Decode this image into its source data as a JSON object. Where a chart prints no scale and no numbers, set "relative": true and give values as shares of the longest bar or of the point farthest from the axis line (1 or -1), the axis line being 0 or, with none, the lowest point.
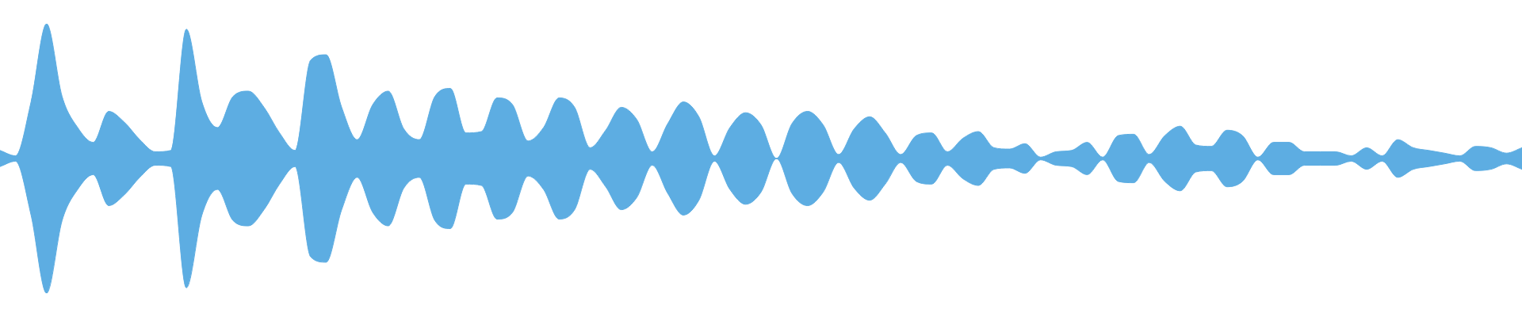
{
  "chart_data": {
    "type": "area",
    "relative": true,
    "ref_lines": [
      {
        "axis": "y",
        "value": 0,
        "color": "#5dade2"
      }
    ],
    "categories": [
      null,
      null,
      null,
      null,
      null,
      null,
      null,
      null,
      null,
      null,
      null,
      null,
      null,
      null,
      null,
      null,
      null,
      null,
      null,
      null,
      null,
      null,
      null,
      null,
      null,
      null,
      null,
      null,
      null,
      null,
      null,
      null,
      null,
      null,
      null,
      null,
      null,
      null,
      null,
      null,
      null,
      null,
      null,
      null,
      null,
      null,
      null,
      null,
      null,
      null,
      null,
      null,
      null,
      null,
      null,
      null,
      null,
      null,
      null,
      null,
      null,
      null,
      null,
      null,
      null,
      null,
      null,
      null,
      null,
      null,
      null,
      null,
      null,
      null,
      null,
      null,
      null,
      null,
      null,
      null,
      null,
      null,
      null,
      null,
      null,
      null,
      null,
      null,
      null,
      null,
      null,
      null,
      null,
      null,
      null,
      null,
      null,
      null,
      null
    ],
    "series": [
      {
        "color": "#5dade2",
        "values": [
          0.06,
          0.02,
          0.42,
          1,
          0.46,
          0.23,
          0.12,
          0.35,
          0.27,
          0.14,
          0.05,
          0.06,
          0.96,
          0.42,
          0.23,
          0.46,
          0.5,
          0.38,
          0.19,
          0.06,
          0.73,
          0.77,
          0.38,
          0.14,
          0.4,
          0.5,
          0.22,
          0.14,
          0.46,
          0.52,
          0.19,
          0.2,
          0.45,
          0.4,
          0.13,
          0.23,
          0.45,
          0.38,
          0.08,
          0.21,
          0.38,
          0.29,
          0.05,
          0.26,
          0.42,
          0.31,
          0.02,
          0.23,
          0.34,
          0.25,
          0,
          0.26,
          0.35,
          0.25,
          0.03,
          0.22,
          0.31,
          0.19,
          0.03,
          0.17,
          0.19,
          0.05,
          0.15,
          0.2,
          0.08,
          0.07,
          0.11,
          0.01,
          0.05,
          0.06,
          0.12,
          0.01,
          0.17,
          0.18,
          0.03,
          0.17,
          0.24,
          0.1,
          0.09,
          0.21,
          0.17,
          0.01,
          0.12,
          0.12,
          0.05,
          0.05,
          0.05,
          0.02,
          0.08,
          0.02,
          0.14,
          0.08,
          0.06,
          0.04,
          0.02,
          0.09,
          0.08,
          0.04,
          0.08
        ]
      },
      {
        "color": "#5dade2",
        "values": [
          -0.06,
          -0.02,
          -0.42,
          -1,
          -0.46,
          -0.23,
          -0.12,
          -0.35,
          -0.27,
          -0.14,
          -0.05,
          -0.06,
          -0.96,
          -0.42,
          -0.23,
          -0.46,
          -0.5,
          -0.38,
          -0.19,
          -0.06,
          -0.73,
          -0.77,
          -0.38,
          -0.14,
          -0.4,
          -0.5,
          -0.22,
          -0.14,
          -0.46,
          -0.52,
          -0.19,
          -0.2,
          -0.45,
          -0.4,
          -0.13,
          -0.23,
          -0.45,
          -0.38,
          -0.08,
          -0.21,
          -0.38,
          -0.29,
          -0.05,
          -0.26,
          -0.42,
          -0.31,
          -0.02,
          -0.23,
          -0.34,
          -0.25,
          0,
          -0.26,
          -0.35,
          -0.25,
          -0.03,
          -0.22,
          -0.31,
          -0.19,
          -0.03,
          -0.17,
          -0.19,
          -0.05,
          -0.15,
          -0.2,
          -0.08,
          -0.07,
          -0.11,
          -0.01,
          -0.05,
          -0.06,
          -0.12,
          -0.01,
          -0.17,
          -0.18,
          -0.03,
          -0.17,
          -0.24,
          -0.1,
          -0.09,
          -0.21,
          -0.17,
          -0.01,
          -0.12,
          -0.12,
          -0.05,
          -0.05,
          -0.05,
          -0.02,
          -0.08,
          -0.02,
          -0.14,
          -0.08,
          -0.06,
          -0.04,
          -0.02,
          -0.09,
          -0.08,
          -0.04,
          -0.08
        ]
      }
    ]
  }
}
